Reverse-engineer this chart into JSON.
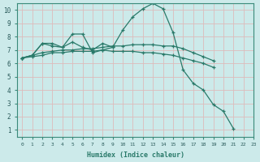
{
  "xlabel": "Humidex (Indice chaleur)",
  "background_color": "#cceaea",
  "grid_color": "#ddbbbb",
  "line_color": "#2a7a6a",
  "xlim": [
    -0.5,
    23
  ],
  "ylim": [
    0.5,
    10.5
  ],
  "xticks": [
    0,
    1,
    2,
    3,
    4,
    5,
    6,
    7,
    8,
    9,
    10,
    11,
    12,
    13,
    14,
    15,
    16,
    17,
    18,
    19,
    20,
    21,
    22,
    23
  ],
  "yticks": [
    1,
    2,
    3,
    4,
    5,
    6,
    7,
    8,
    9,
    10
  ],
  "series": [
    {
      "x": [
        0,
        1,
        2,
        3,
        4,
        5,
        6,
        7,
        8,
        9,
        10,
        11,
        12,
        13,
        14,
        15,
        16,
        17,
        18,
        19,
        20,
        21
      ],
      "y": [
        6.4,
        6.6,
        7.5,
        7.5,
        7.2,
        7.6,
        7.2,
        7.0,
        7.5,
        7.2,
        8.5,
        9.5,
        10.1,
        10.5,
        10.1,
        8.3,
        5.5,
        4.5,
        4.0,
        2.9,
        2.4,
        1.1
      ]
    },
    {
      "x": [
        0,
        1,
        2,
        3,
        4,
        5,
        6,
        7,
        8,
        9
      ],
      "y": [
        6.4,
        6.6,
        7.5,
        7.3,
        7.2,
        8.2,
        8.2,
        6.8,
        7.0,
        7.2
      ]
    },
    {
      "x": [
        0,
        1,
        2,
        3,
        4,
        5,
        6,
        7,
        8,
        9,
        10,
        11,
        12,
        13,
        14,
        15,
        16,
        17,
        18,
        19
      ],
      "y": [
        6.4,
        6.6,
        6.8,
        6.9,
        7.0,
        7.0,
        7.1,
        7.1,
        7.2,
        7.3,
        7.3,
        7.4,
        7.4,
        7.4,
        7.3,
        7.3,
        7.1,
        6.8,
        6.5,
        6.2
      ]
    },
    {
      "x": [
        0,
        1,
        2,
        3,
        4,
        5,
        6,
        7,
        8,
        9,
        10,
        11,
        12,
        13,
        14,
        15,
        16,
        17,
        18,
        19
      ],
      "y": [
        6.4,
        6.5,
        6.6,
        6.8,
        6.8,
        6.9,
        6.9,
        6.9,
        7.0,
        6.9,
        6.9,
        6.9,
        6.8,
        6.8,
        6.7,
        6.6,
        6.4,
        6.2,
        6.0,
        5.7
      ]
    }
  ]
}
